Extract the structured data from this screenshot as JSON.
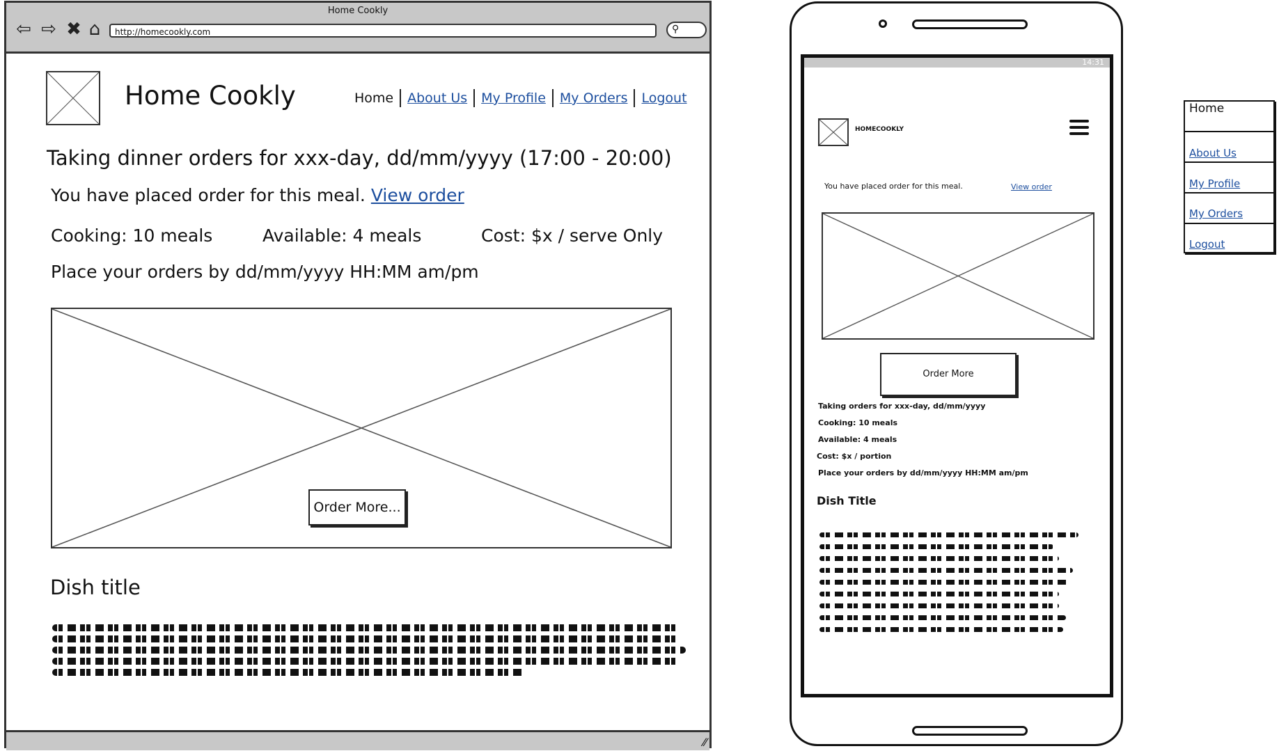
{
  "browser": {
    "title": "Home Cookly",
    "url": "http://homecookly.com",
    "nav_icons": [
      "back-arrow-icon",
      "forward-arrow-icon",
      "close-icon",
      "home-icon"
    ]
  },
  "desktop": {
    "site_title": "Home Cookly",
    "nav": [
      "Home",
      "About Us",
      "My Profile",
      "My Orders",
      "Logout"
    ],
    "heading": "Taking dinner orders for xxx-day, dd/mm/yyyy (17:00 - 20:00)",
    "placed_text": "You have placed order for this meal.",
    "view_order": "View order",
    "cooking": "Cooking: 10 meals",
    "available": "Available: 4 meals",
    "cost": "Cost: $x / serve Only",
    "deadline": "Place your orders by dd/mm/yyyy HH:MM am/pm",
    "order_more": "Order More...",
    "dish_title": "Dish title"
  },
  "mobile": {
    "status_time": "14:31",
    "brand": "HOMECOOKLY",
    "placed_text": "You have placed order for this meal.",
    "view_order": "View order",
    "order_more": "Order More",
    "details": [
      "Taking orders for xxx-day, dd/mm/yyyy",
      "Cooking: 10 meals",
      "Available: 4 meals",
      "Cost: $x / portion",
      "Place your orders by dd/mm/yyyy HH:MM am/pm"
    ],
    "dish_title": "Dish Title"
  },
  "side_menu": [
    "Home",
    "About Us",
    "My Profile",
    "My Orders",
    "Logout"
  ]
}
